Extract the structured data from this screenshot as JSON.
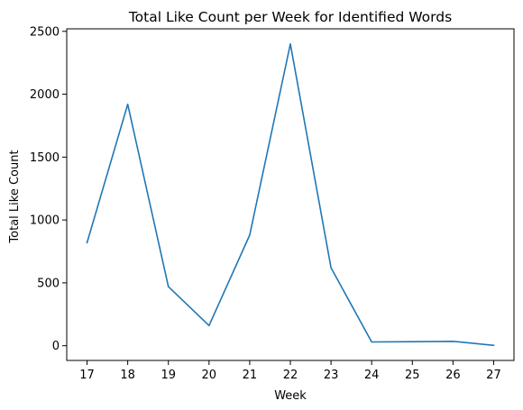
{
  "chart_data": {
    "type": "line",
    "title": "Total Like Count per Week for Identified Words",
    "xlabel": "Week",
    "ylabel": "Total Like Count",
    "x": [
      17,
      18,
      19,
      20,
      21,
      22,
      23,
      24,
      25,
      26,
      27
    ],
    "series": [
      {
        "values": [
          820,
          1920,
          470,
          160,
          880,
          2400,
          620,
          30,
          32,
          35,
          3
        ]
      }
    ],
    "xticks": [
      17,
      18,
      19,
      20,
      21,
      22,
      23,
      24,
      25,
      26,
      27
    ],
    "yticks": [
      0,
      500,
      1000,
      1500,
      2000,
      2500
    ],
    "xlim": [
      16.5,
      27.5
    ],
    "ylim": [
      -117,
      2520
    ],
    "grid": false,
    "line_color": "#1f77b4"
  }
}
